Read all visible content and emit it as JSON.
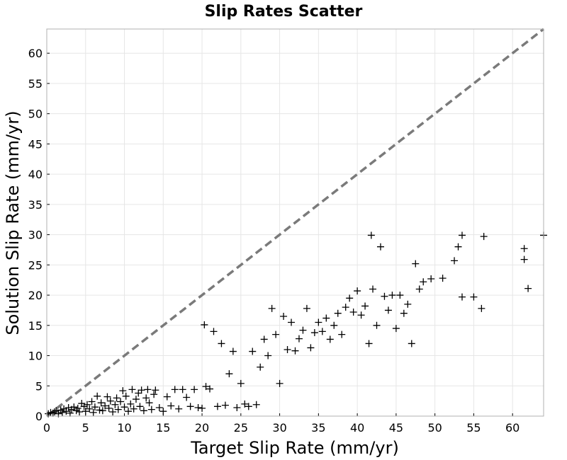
{
  "chart_data": {
    "type": "scatter",
    "title": "Slip Rates Scatter",
    "xlabel": "Target Slip Rate (mm/yr)",
    "ylabel": "Solution Slip Rate (mm/yr)",
    "xlim": [
      0,
      64
    ],
    "ylim": [
      0,
      64
    ],
    "xticks": [
      0,
      5,
      10,
      15,
      20,
      25,
      30,
      35,
      40,
      45,
      50,
      55,
      60
    ],
    "yticks": [
      0,
      5,
      10,
      15,
      20,
      25,
      30,
      35,
      40,
      45,
      50,
      55,
      60
    ],
    "grid": true,
    "marker": "plus",
    "marker_color": "#000000",
    "reference_line": {
      "x": [
        0,
        64
      ],
      "y": [
        0,
        64
      ],
      "style": "dashed",
      "color": "#7a7a7a"
    },
    "points": [
      [
        0.2,
        0.4
      ],
      [
        0.5,
        0.6
      ],
      [
        0.8,
        0.5
      ],
      [
        1.0,
        0.7
      ],
      [
        1.2,
        0.9
      ],
      [
        1.5,
        0.4
      ],
      [
        1.8,
        1.0
      ],
      [
        2.0,
        0.6
      ],
      [
        2.2,
        1.2
      ],
      [
        2.5,
        0.8
      ],
      [
        2.8,
        1.4
      ],
      [
        3.0,
        0.5
      ],
      [
        3.2,
        1.1
      ],
      [
        3.5,
        1.5
      ],
      [
        3.8,
        0.9
      ],
      [
        4.0,
        1.3
      ],
      [
        4.2,
        0.7
      ],
      [
        4.5,
        2.1
      ],
      [
        4.8,
        1.6
      ],
      [
        5.0,
        0.8
      ],
      [
        5.2,
        1.9
      ],
      [
        5.5,
        1.2
      ],
      [
        5.8,
        2.4
      ],
      [
        6.0,
        0.6
      ],
      [
        6.2,
        1.5
      ],
      [
        6.5,
        3.3
      ],
      [
        6.8,
        1.0
      ],
      [
        7.0,
        2.2
      ],
      [
        7.2,
        0.9
      ],
      [
        7.5,
        1.7
      ],
      [
        7.8,
        3.2
      ],
      [
        8.0,
        1.3
      ],
      [
        8.2,
        2.5
      ],
      [
        8.5,
        0.7
      ],
      [
        8.8,
        1.9
      ],
      [
        9.0,
        3.0
      ],
      [
        9.2,
        1.1
      ],
      [
        9.5,
        2.4
      ],
      [
        9.8,
        4.2
      ],
      [
        10.0,
        1.5
      ],
      [
        10.2,
        3.3
      ],
      [
        10.5,
        0.8
      ],
      [
        10.8,
        2.0
      ],
      [
        11.0,
        4.4
      ],
      [
        11.2,
        1.2
      ],
      [
        11.5,
        2.8
      ],
      [
        11.8,
        3.8
      ],
      [
        12.0,
        1.6
      ],
      [
        12.2,
        4.3
      ],
      [
        12.5,
        0.9
      ],
      [
        12.8,
        3.0
      ],
      [
        13.0,
        4.4
      ],
      [
        13.2,
        2.2
      ],
      [
        13.5,
        1.1
      ],
      [
        13.8,
        3.6
      ],
      [
        14.0,
        4.3
      ],
      [
        14.5,
        1.4
      ],
      [
        15.0,
        0.8
      ],
      [
        15.5,
        3.2
      ],
      [
        16.0,
        1.7
      ],
      [
        16.5,
        4.4
      ],
      [
        17.0,
        1.2
      ],
      [
        17.5,
        4.4
      ],
      [
        18.0,
        3.1
      ],
      [
        18.5,
        1.6
      ],
      [
        19.0,
        4.4
      ],
      [
        19.5,
        1.4
      ],
      [
        20.0,
        1.3
      ],
      [
        20.3,
        15.1
      ],
      [
        20.5,
        4.9
      ],
      [
        21.0,
        4.5
      ],
      [
        21.5,
        14.0
      ],
      [
        22.0,
        1.6
      ],
      [
        22.5,
        12.0
      ],
      [
        23.0,
        1.8
      ],
      [
        23.5,
        7.0
      ],
      [
        24.0,
        10.7
      ],
      [
        24.5,
        1.4
      ],
      [
        25.0,
        5.4
      ],
      [
        25.5,
        2.0
      ],
      [
        26.0,
        1.6
      ],
      [
        26.5,
        10.7
      ],
      [
        27.0,
        1.9
      ],
      [
        27.5,
        8.1
      ],
      [
        28.0,
        12.7
      ],
      [
        28.5,
        10.0
      ],
      [
        29.0,
        17.8
      ],
      [
        29.5,
        13.5
      ],
      [
        30.0,
        5.4
      ],
      [
        30.5,
        16.5
      ],
      [
        31.0,
        11.0
      ],
      [
        31.5,
        15.5
      ],
      [
        32.0,
        10.8
      ],
      [
        32.5,
        12.8
      ],
      [
        33.0,
        14.2
      ],
      [
        33.5,
        17.8
      ],
      [
        34.0,
        11.3
      ],
      [
        34.5,
        13.8
      ],
      [
        35.0,
        15.5
      ],
      [
        35.5,
        14.0
      ],
      [
        36.0,
        16.2
      ],
      [
        36.5,
        12.7
      ],
      [
        37.0,
        15.0
      ],
      [
        37.5,
        17.0
      ],
      [
        38.0,
        13.5
      ],
      [
        38.5,
        18.0
      ],
      [
        39.0,
        19.5
      ],
      [
        39.5,
        17.2
      ],
      [
        40.0,
        20.7
      ],
      [
        40.5,
        16.7
      ],
      [
        41.0,
        18.2
      ],
      [
        41.5,
        12.0
      ],
      [
        41.8,
        29.9
      ],
      [
        42.0,
        21.0
      ],
      [
        42.5,
        15.0
      ],
      [
        43.0,
        28.0
      ],
      [
        43.5,
        19.8
      ],
      [
        44.0,
        17.5
      ],
      [
        44.5,
        20.0
      ],
      [
        45.0,
        14.5
      ],
      [
        45.5,
        20.0
      ],
      [
        46.0,
        17.0
      ],
      [
        46.5,
        18.5
      ],
      [
        47.0,
        12.0
      ],
      [
        47.5,
        25.2
      ],
      [
        48.0,
        21.0
      ],
      [
        48.5,
        22.2
      ],
      [
        49.5,
        22.7
      ],
      [
        51.0,
        22.8
      ],
      [
        52.5,
        25.7
      ],
      [
        53.0,
        28.0
      ],
      [
        53.5,
        29.9
      ],
      [
        53.5,
        19.7
      ],
      [
        55.0,
        19.7
      ],
      [
        56.0,
        17.8
      ],
      [
        56.3,
        29.7
      ],
      [
        61.5,
        27.7
      ],
      [
        61.5,
        25.9
      ],
      [
        62.0,
        21.1
      ],
      [
        64.0,
        29.9
      ]
    ]
  }
}
